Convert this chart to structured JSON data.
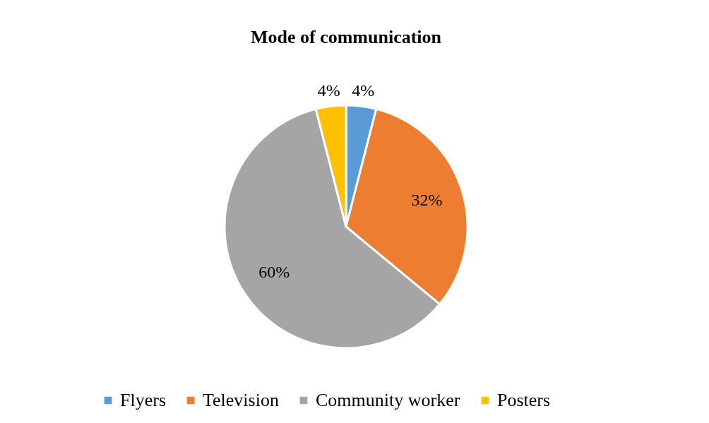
{
  "chart_data": {
    "type": "pie",
    "title": "Mode of communication",
    "categories": [
      "Flyers",
      "Television",
      "Community worker",
      "Posters"
    ],
    "values": [
      4,
      32,
      60,
      4
    ],
    "colors": [
      "#5b9bd5",
      "#ed7d31",
      "#a5a5a5",
      "#ffc000"
    ],
    "value_labels": [
      "4%",
      "32%",
      "60%",
      "4%"
    ],
    "legend": "bottom"
  }
}
